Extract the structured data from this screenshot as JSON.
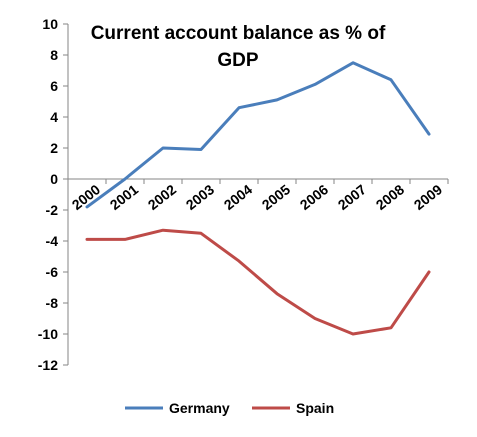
{
  "chart_data": {
    "type": "line",
    "title_lines": [
      "Current account balance as % of",
      "GDP"
    ],
    "categories": [
      "2000",
      "2001",
      "2002",
      "2003",
      "2004",
      "2005",
      "2006",
      "2007",
      "2008",
      "2009"
    ],
    "series": [
      {
        "name": "Germany",
        "color": "#4a7ebb",
        "values": [
          -1.8,
          0.0,
          2.0,
          1.9,
          4.6,
          5.1,
          6.1,
          7.5,
          6.4,
          2.9
        ]
      },
      {
        "name": "Spain",
        "color": "#be4b48",
        "values": [
          -3.9,
          -3.9,
          -3.3,
          -3.5,
          -5.3,
          -7.4,
          -9.0,
          -10.0,
          -9.6,
          -6.0
        ]
      }
    ],
    "ylim": [
      -12,
      10
    ],
    "yticks": [
      "10",
      "8",
      "6",
      "4",
      "2",
      "0",
      "-2",
      "-4",
      "-6",
      "-8",
      "-10",
      "-12"
    ],
    "grid": false,
    "legend_position": "bottom"
  }
}
